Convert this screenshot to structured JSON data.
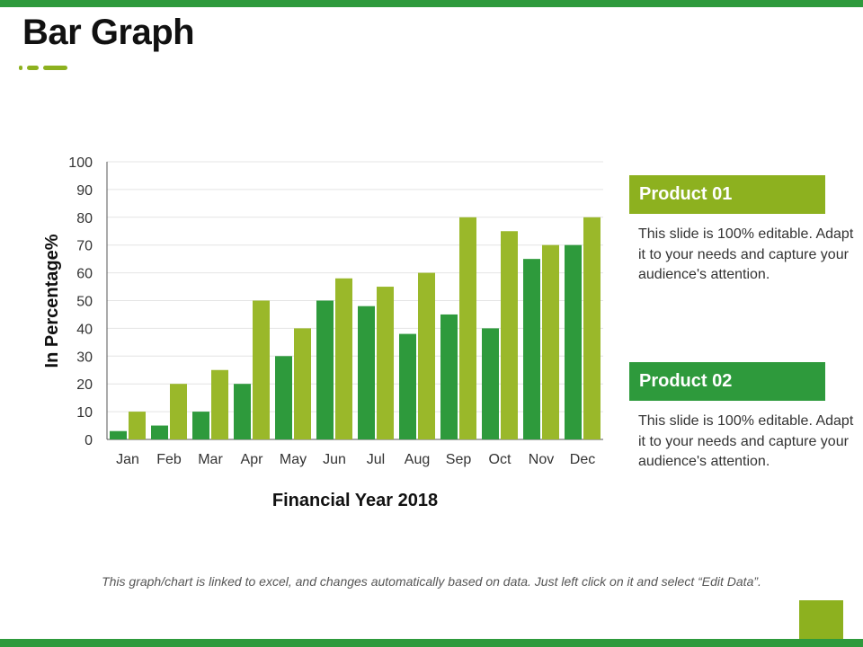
{
  "slide": {
    "title": "Bar Graph",
    "footer": "This graph/chart is linked to excel, and changes automatically based on data. Just left click on it and select “Edit Data”."
  },
  "colors": {
    "brand_green": "#2e9a3c",
    "accent_lime": "#8db11f",
    "series1": "#2e9a3c",
    "series2": "#9ab82a"
  },
  "products": [
    {
      "label": "Product 01",
      "desc": "This slide is 100% editable. Adapt it to your needs and capture your audience's attention.",
      "color": "#8db11f"
    },
    {
      "label": "Product 02",
      "desc": "This slide is 100% editable. Adapt it to your needs and capture your audience's attention.",
      "color": "#2e9a3c"
    }
  ],
  "chart_data": {
    "type": "bar",
    "title": "",
    "xlabel": "Financial Year 2018",
    "ylabel": "In Percentage%",
    "ylim": [
      0,
      100
    ],
    "yticks": [
      0,
      10,
      20,
      30,
      40,
      50,
      60,
      70,
      80,
      90,
      100
    ],
    "grid": true,
    "categories": [
      "Jan",
      "Feb",
      "Mar",
      "Apr",
      "May",
      "Jun",
      "Jul",
      "Aug",
      "Sep",
      "Oct",
      "Nov",
      "Dec"
    ],
    "series": [
      {
        "values": [
          3,
          5,
          10,
          20,
          30,
          50,
          48,
          38,
          45,
          40,
          65,
          70
        ],
        "color": "#2e9a3c"
      },
      {
        "values": [
          10,
          20,
          25,
          50,
          40,
          58,
          55,
          60,
          80,
          75,
          70,
          80
        ],
        "color": "#9ab82a"
      }
    ]
  }
}
